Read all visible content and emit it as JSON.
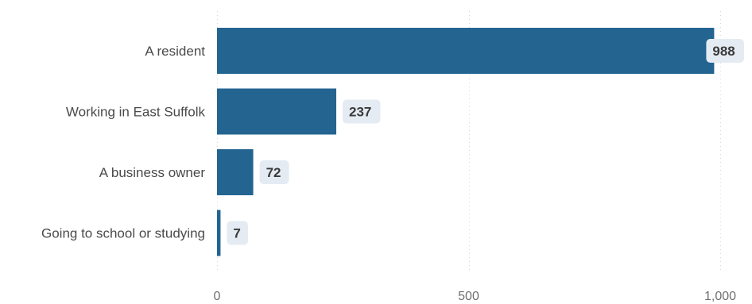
{
  "chart_data": {
    "type": "bar",
    "orientation": "horizontal",
    "categories": [
      "A resident",
      "Working in East Suffolk",
      "A business owner",
      "Going to school or studying"
    ],
    "values": [
      988,
      237,
      72,
      7
    ],
    "data_labels": [
      "988",
      "237",
      "72",
      "7"
    ],
    "xlim": [
      0,
      1000
    ],
    "x_ticks": [
      0,
      500,
      1000
    ],
    "x_tick_labels": [
      "0",
      "500",
      "1,000"
    ],
    "title": "",
    "xlabel": "",
    "ylabel": "",
    "grid": true,
    "legend": "none",
    "colors": {
      "bar": "#236491",
      "label_background": "#e4ebf3"
    }
  }
}
